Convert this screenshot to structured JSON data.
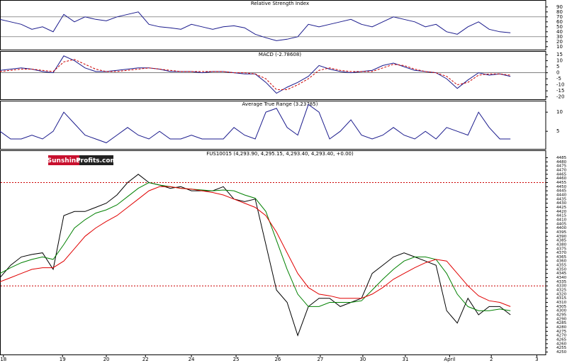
{
  "chart_data": [
    {
      "type": "line",
      "title": "Relative Strength Index",
      "ylim": [
        4,
        104
      ],
      "yticks": [
        10,
        20,
        30,
        40,
        50,
        60,
        70,
        80,
        90
      ],
      "levels": [
        70,
        30
      ],
      "xlim": [
        0,
        12.83
      ],
      "x": [
        0,
        0.25,
        0.5,
        0.75,
        1,
        1.25,
        1.5,
        1.75,
        2,
        2.25,
        2.5,
        2.75,
        3,
        3.25,
        3.5,
        3.75,
        4,
        4.25,
        4.5,
        4.75,
        5,
        5.25,
        5.5,
        5.75,
        6,
        6.25,
        6.5,
        6.75,
        7,
        7.25,
        7.5,
        7.75,
        8,
        8.25,
        8.5,
        8.75,
        9,
        9.25,
        9.5,
        9.75,
        10,
        10.25,
        10.5,
        10.75,
        11,
        11.25,
        11.5,
        11.75,
        12
      ],
      "series": [
        {
          "name": "RSI",
          "color": "#1a1a8c",
          "values": [
            65,
            60,
            55,
            45,
            50,
            40,
            75,
            60,
            70,
            65,
            62,
            70,
            75,
            80,
            55,
            50,
            48,
            45,
            55,
            50,
            45,
            50,
            52,
            48,
            35,
            28,
            22,
            25,
            30,
            55,
            50,
            55,
            60,
            65,
            55,
            50,
            60,
            70,
            65,
            60,
            50,
            55,
            40,
            35,
            50,
            60,
            45,
            40,
            38
          ]
        }
      ]
    },
    {
      "type": "line",
      "title": "MACD (-2.78608)",
      "ylim": [
        -22,
        18
      ],
      "yticks": [
        -20,
        -15,
        -10,
        -5,
        0,
        5,
        10,
        15
      ],
      "levels": [
        0
      ],
      "xlim": [
        0,
        12.83
      ],
      "x": [
        0,
        0.25,
        0.5,
        0.75,
        1,
        1.25,
        1.5,
        1.75,
        2,
        2.25,
        2.5,
        2.75,
        3,
        3.25,
        3.5,
        3.75,
        4,
        4.25,
        4.5,
        4.75,
        5,
        5.25,
        5.5,
        5.75,
        6,
        6.25,
        6.5,
        6.75,
        7,
        7.25,
        7.5,
        7.75,
        8,
        8.25,
        8.5,
        8.75,
        9,
        9.25,
        9.5,
        9.75,
        10,
        10.25,
        10.5,
        10.75,
        11,
        11.25,
        11.5,
        11.75,
        12
      ],
      "series": [
        {
          "name": "MACD",
          "color": "#1a1a8c",
          "values": [
            2,
            3,
            4,
            3,
            1,
            0,
            14,
            10,
            4,
            1,
            1,
            2,
            3,
            4,
            4,
            3,
            1,
            1,
            1,
            0,
            1,
            1,
            0,
            -1,
            -1,
            -8,
            -17,
            -12,
            -8,
            -3,
            6,
            3,
            1,
            0,
            1,
            2,
            6,
            8,
            5,
            2,
            1,
            0,
            -5,
            -13,
            -6,
            0,
            -2,
            -1,
            -3
          ]
        },
        {
          "name": "Signal",
          "color": "#cc0000",
          "dashed": true,
          "values": [
            1,
            2,
            3,
            3,
            2,
            1,
            9,
            11,
            7,
            3,
            1,
            1,
            2,
            3,
            4,
            3,
            2,
            1,
            1,
            1,
            1,
            1,
            0,
            0,
            -1,
            -5,
            -14,
            -14,
            -10,
            -5,
            2,
            4,
            2,
            1,
            1,
            1,
            4,
            7,
            6,
            3,
            1,
            0,
            -3,
            -10,
            -8,
            -2,
            -1,
            -1,
            -2
          ]
        }
      ]
    },
    {
      "type": "line",
      "title": "Average True Range (3.23785)",
      "ylim": [
        0.4,
        13
      ],
      "yticks": [
        5,
        10
      ],
      "xlim": [
        0,
        12.83
      ],
      "x": [
        0,
        0.25,
        0.5,
        0.75,
        1,
        1.25,
        1.5,
        1.75,
        2,
        2.25,
        2.5,
        2.75,
        3,
        3.25,
        3.5,
        3.75,
        4,
        4.25,
        4.5,
        4.75,
        5,
        5.25,
        5.5,
        5.75,
        6,
        6.25,
        6.5,
        6.75,
        7,
        7.25,
        7.5,
        7.75,
        8,
        8.25,
        8.5,
        8.75,
        9,
        9.25,
        9.5,
        9.75,
        10,
        10.25,
        10.5,
        10.75,
        11,
        11.25,
        11.5,
        11.75,
        12
      ],
      "series": [
        {
          "name": "ATR",
          "color": "#1a1a8c",
          "values": [
            5,
            3,
            3,
            4,
            3,
            5,
            10,
            7,
            4,
            3,
            2,
            4,
            6,
            4,
            3,
            5,
            3,
            3,
            4,
            3,
            3,
            3,
            6,
            4,
            3,
            10,
            11,
            6,
            4,
            12,
            10,
            3,
            5,
            8,
            4,
            3,
            4,
            6,
            4,
            3,
            5,
            3,
            6,
            5,
            4,
            10,
            6,
            3,
            3
          ]
        }
      ]
    },
    {
      "type": "line",
      "title": "FUS10015 (4,293.90, 4,295.15, 4,293.40, 4,293.40, +0.00)",
      "logo": [
        "Sunshine",
        "Profits.com"
      ],
      "ylim": [
        4247,
        4494
      ],
      "yticks": [
        4250,
        4255,
        4260,
        4265,
        4270,
        4275,
        4280,
        4285,
        4290,
        4295,
        4300,
        4305,
        4310,
        4315,
        4320,
        4325,
        4330,
        4335,
        4340,
        4345,
        4350,
        4355,
        4360,
        4365,
        4370,
        4375,
        4380,
        4385,
        4390,
        4395,
        4400,
        4405,
        4410,
        4415,
        4420,
        4425,
        4430,
        4435,
        4440,
        4445,
        4450,
        4455,
        4460,
        4465,
        4470,
        4475,
        4480,
        4485
      ],
      "levels": [
        4455,
        4330
      ],
      "level_color": "#cc0000",
      "xlim": [
        0,
        12.83
      ],
      "xticks": [
        {
          "value": 0.08,
          "label": "18"
        },
        {
          "value": 1.47,
          "label": "19"
        },
        {
          "value": 2.5,
          "label": "20"
        },
        {
          "value": 3.42,
          "label": "22"
        },
        {
          "value": 4.5,
          "label": "24"
        },
        {
          "value": 5.55,
          "label": "25"
        },
        {
          "value": 6.53,
          "label": "26"
        },
        {
          "value": 7.53,
          "label": "27"
        },
        {
          "value": 8.53,
          "label": "30"
        },
        {
          "value": 9.53,
          "label": "31"
        },
        {
          "value": 10.57,
          "label": "April"
        },
        {
          "value": 11.55,
          "label": "2"
        },
        {
          "value": 12.62,
          "label": "3"
        }
      ],
      "x": [
        0,
        0.25,
        0.5,
        0.75,
        1,
        1.25,
        1.5,
        1.75,
        2,
        2.25,
        2.5,
        2.75,
        3,
        3.25,
        3.5,
        3.75,
        4,
        4.25,
        4.5,
        4.75,
        5,
        5.25,
        5.5,
        5.75,
        6,
        6.25,
        6.5,
        6.75,
        7,
        7.25,
        7.5,
        7.75,
        8,
        8.25,
        8.5,
        8.75,
        9,
        9.25,
        9.5,
        9.75,
        10,
        10.25,
        10.5,
        10.75,
        11,
        11.25,
        11.5,
        11.75,
        12
      ],
      "series": [
        {
          "name": "Price",
          "color": "#000000",
          "values": [
            4340,
            4355,
            4365,
            4368,
            4370,
            4350,
            4415,
            4420,
            4420,
            4425,
            4430,
            4440,
            4455,
            4465,
            4455,
            4452,
            4448,
            4450,
            4445,
            4445,
            4445,
            4450,
            4435,
            4432,
            4435,
            4380,
            4325,
            4310,
            4270,
            4305,
            4315,
            4315,
            4305,
            4310,
            4315,
            4345,
            4355,
            4365,
            4370,
            4365,
            4360,
            4355,
            4300,
            4285,
            4315,
            4295,
            4305,
            4305,
            4295
          ]
        },
        {
          "name": "Fast MA",
          "color": "#008000",
          "values": [
            4345,
            4352,
            4358,
            4362,
            4365,
            4362,
            4380,
            4400,
            4410,
            4418,
            4422,
            4428,
            4438,
            4448,
            4455,
            4452,
            4450,
            4448,
            4447,
            4446,
            4445,
            4446,
            4445,
            4440,
            4436,
            4420,
            4385,
            4350,
            4320,
            4305,
            4305,
            4310,
            4310,
            4310,
            4312,
            4325,
            4338,
            4350,
            4360,
            4365,
            4365,
            4362,
            4345,
            4320,
            4305,
            4300,
            4300,
            4302,
            4300
          ]
        },
        {
          "name": "Slow MA",
          "color": "#e00000",
          "values": [
            4335,
            4340,
            4345,
            4350,
            4352,
            4352,
            4360,
            4375,
            4390,
            4400,
            4408,
            4415,
            4425,
            4435,
            4445,
            4450,
            4450,
            4448,
            4447,
            4445,
            4443,
            4440,
            4435,
            4430,
            4425,
            4415,
            4395,
            4370,
            4345,
            4328,
            4320,
            4318,
            4315,
            4315,
            4315,
            4320,
            4328,
            4338,
            4345,
            4352,
            4358,
            4362,
            4360,
            4345,
            4330,
            4318,
            4312,
            4310,
            4305
          ]
        }
      ]
    }
  ]
}
